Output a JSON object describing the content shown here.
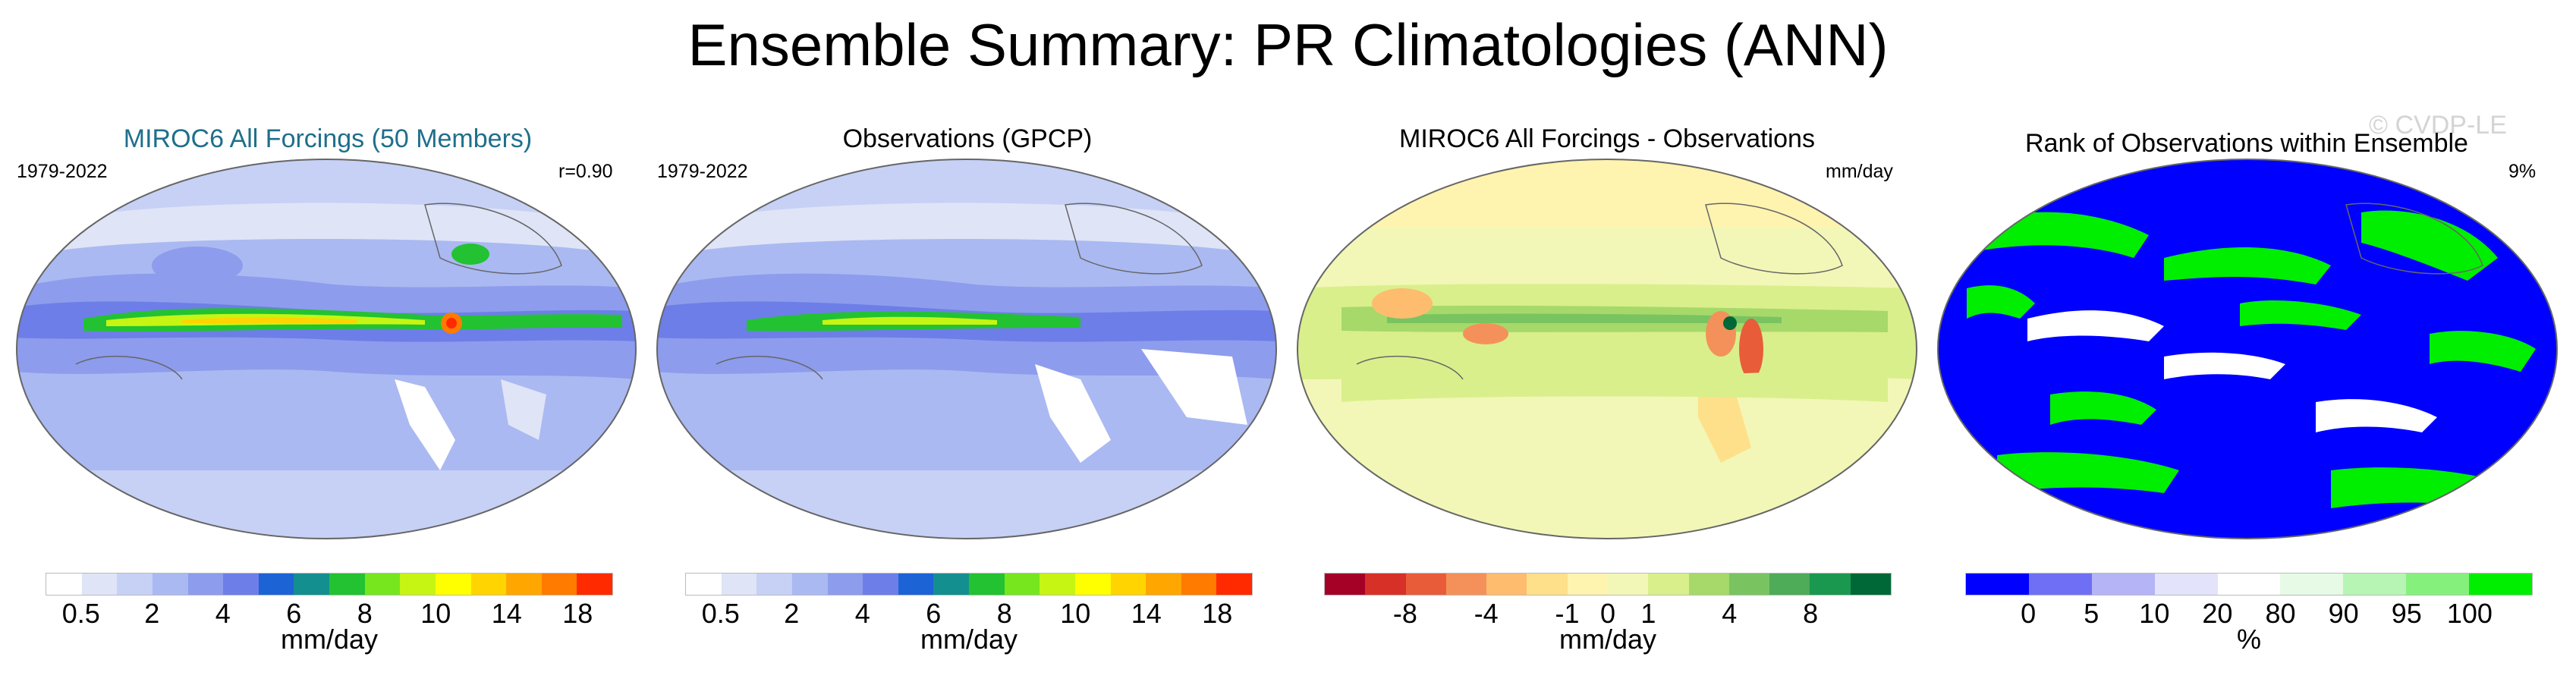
{
  "title": "Ensemble Summary: PR Climatologies (ANN)",
  "watermark": "© CVDP-LE",
  "panels": [
    {
      "id": "model",
      "title": "MIROC6 All Forcings (50 Members)",
      "title_color": "#1f6f8b",
      "left_label": "1979-2022",
      "right_label": "r=0.90",
      "colorbar_colors": [
        "#ffffff",
        "#dfe4f7",
        "#c6d1f5",
        "#aab9f1",
        "#8d9cec",
        "#6d7ee8",
        "#1c63d6",
        "#148f8f",
        "#22c232",
        "#77e61e",
        "#c6f514",
        "#ffff00",
        "#ffd400",
        "#ffa600",
        "#ff7b00",
        "#ff2a00"
      ],
      "ticks": [
        "0.5",
        "2",
        "4",
        "6",
        "8",
        "10",
        "14",
        "18"
      ],
      "unit": "mm/day"
    },
    {
      "id": "obs",
      "title": "Observations (GPCP)",
      "title_color": "#000000",
      "left_label": "1979-2022",
      "right_label": "",
      "colorbar_colors": [
        "#ffffff",
        "#dfe4f7",
        "#c6d1f5",
        "#aab9f1",
        "#8d9cec",
        "#6d7ee8",
        "#1c63d6",
        "#148f8f",
        "#22c232",
        "#77e61e",
        "#c6f514",
        "#ffff00",
        "#ffd400",
        "#ffa600",
        "#ff7b00",
        "#ff2a00"
      ],
      "ticks": [
        "0.5",
        "2",
        "4",
        "6",
        "8",
        "10",
        "14",
        "18"
      ],
      "unit": "mm/day"
    },
    {
      "id": "diff",
      "title": "MIROC6 All Forcings - Observations",
      "title_color": "#000000",
      "left_label": "",
      "right_label": "mm/day",
      "colorbar_colors": [
        "#a50026",
        "#d73027",
        "#e85c3a",
        "#f4915a",
        "#fdbc6e",
        "#fee08b",
        "#fff3b0",
        "#f2f7b7",
        "#d9ef8b",
        "#a6d96a",
        "#79c461",
        "#4eab58",
        "#1a9850",
        "#006837"
      ],
      "ticks": [
        "-8",
        "-4",
        "-1",
        "0",
        "1",
        "4",
        "8"
      ],
      "unit": "mm/day"
    },
    {
      "id": "rank",
      "title": "Rank of Observations within Ensemble",
      "title_color": "#000000",
      "left_label": "",
      "right_label": "9%",
      "colorbar_colors": [
        "#0000ff",
        "#6f6ff5",
        "#b4b4f6",
        "#e3e3fb",
        "#ffffff",
        "#e6fae6",
        "#b6f5b4",
        "#86f07d",
        "#00ee00"
      ],
      "ticks": [
        "0",
        "5",
        "10",
        "20",
        "80",
        "90",
        "95",
        "100"
      ],
      "unit": "%"
    }
  ]
}
